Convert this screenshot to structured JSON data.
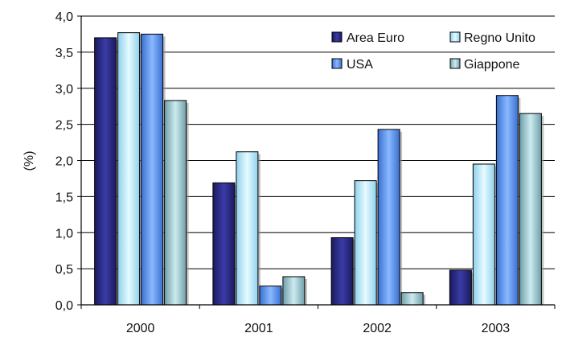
{
  "chart_data": {
    "type": "bar",
    "title": "",
    "xlabel": "",
    "ylabel": "(%)",
    "ylim": [
      0,
      4
    ],
    "yticks": [
      "0,0",
      "0,5",
      "1,0",
      "1,5",
      "2,0",
      "2,5",
      "3,0",
      "3,5",
      "4,0"
    ],
    "grid": true,
    "legend_position": "top-right",
    "categories": [
      "2000",
      "2001",
      "2002",
      "2003"
    ],
    "series": [
      {
        "name": "Area Euro",
        "color": "#2e2e8c",
        "values": [
          3.7,
          1.69,
          0.93,
          0.48
        ]
      },
      {
        "name": "Regno Unito",
        "color": "#bfefff",
        "values": [
          3.77,
          2.12,
          1.72,
          1.95
        ]
      },
      {
        "name": "USA",
        "color": "#5b96f0",
        "values": [
          3.75,
          0.26,
          2.43,
          2.9
        ]
      },
      {
        "name": "Giappone",
        "color": "#9fc9d0",
        "values": [
          2.83,
          0.39,
          0.17,
          2.65
        ]
      }
    ]
  }
}
